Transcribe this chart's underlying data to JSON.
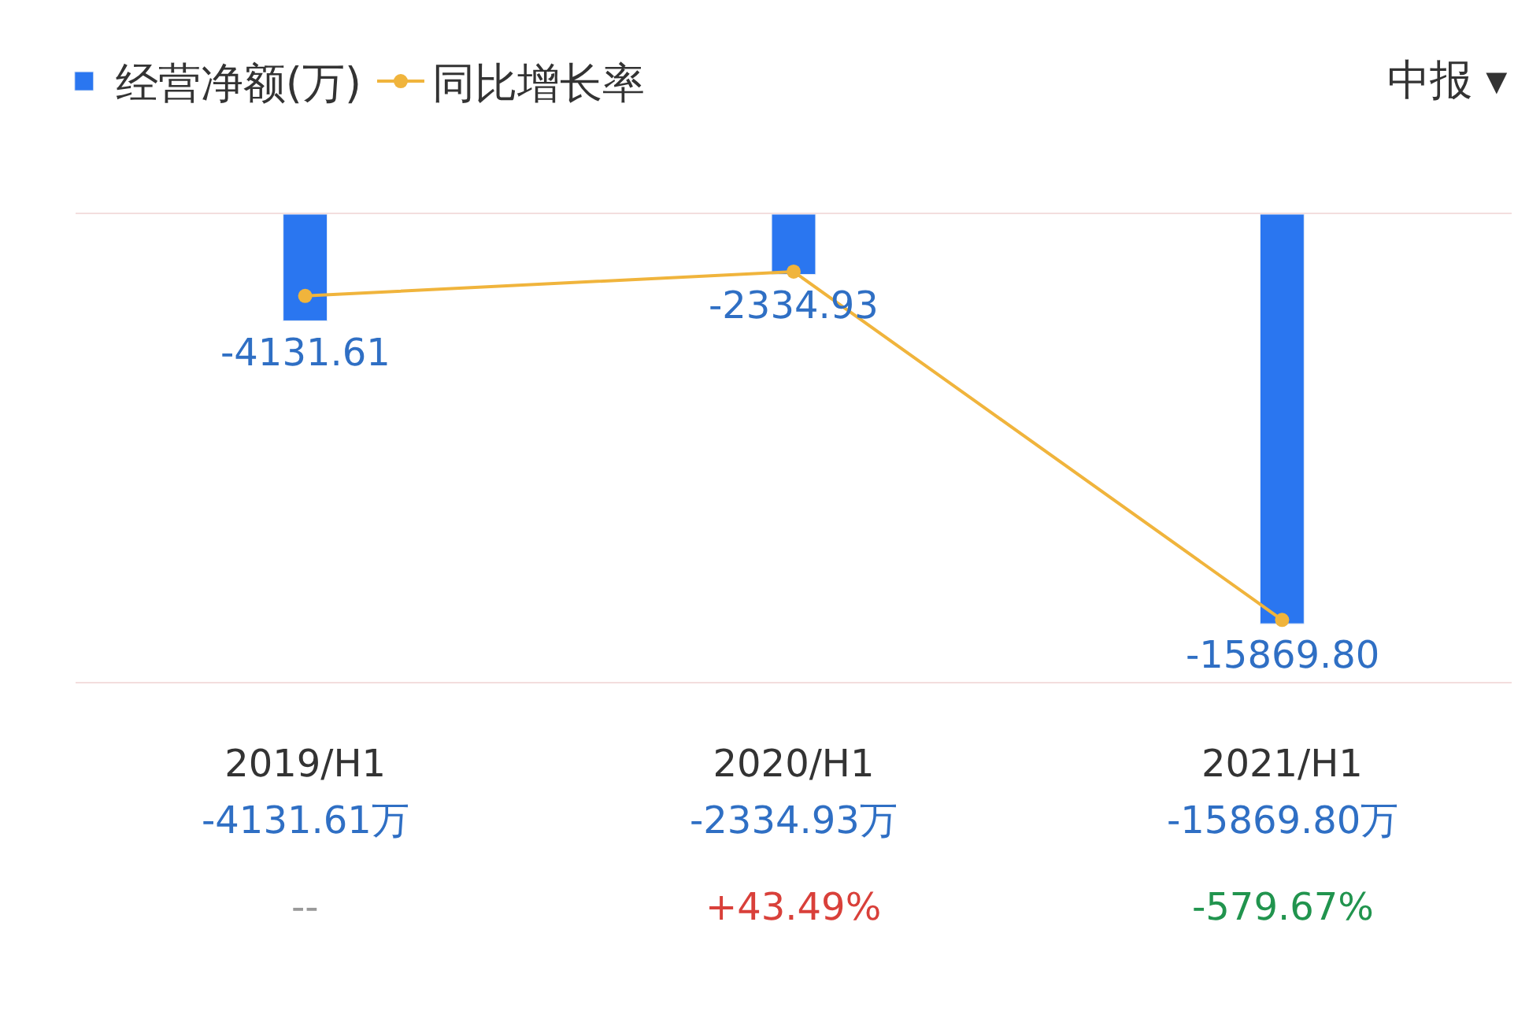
{
  "chart_data": {
    "type": "bar",
    "categories": [
      "2019/H1",
      "2020/H1",
      "2021/H1"
    ],
    "series": [
      {
        "name": "经营净额(万)",
        "color": "#2a76f0",
        "values": [
          -4131.61,
          -2334.93,
          -15869.8
        ],
        "value_labels": [
          "-4131.61",
          "-2334.93",
          "-15869.80"
        ]
      },
      {
        "name": "同比增长率",
        "type": "line",
        "axis": "y2",
        "color": "#f0b43c",
        "marker": "circle",
        "values": [
          0,
          43.49,
          -579.67
        ],
        "value_labels": [
          "--",
          "+43.49%",
          "-579.67%"
        ]
      }
    ],
    "tick_labels": "x",
    "legend": "top left",
    "annotations": [
      "中报 ▾",
      "-4131.61万",
      "-2334.93万",
      "-15869.80万"
    ]
  }
}
